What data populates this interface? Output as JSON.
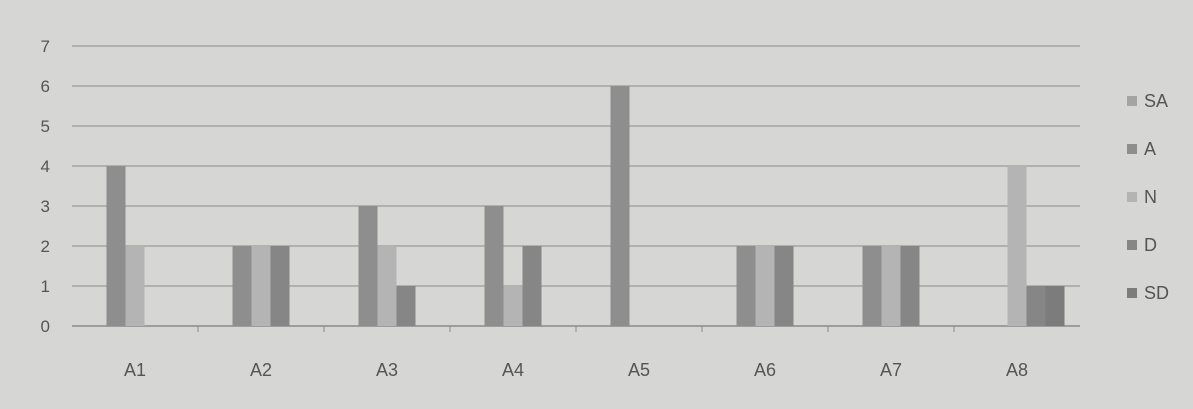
{
  "chart_data": {
    "type": "bar",
    "categories": [
      "A1",
      "A2",
      "A3",
      "A4",
      "A5",
      "A6",
      "A7",
      "A8"
    ],
    "series": [
      {
        "name": "SA",
        "values": [
          0,
          0,
          0,
          0,
          0,
          0,
          0,
          0
        ]
      },
      {
        "name": "A",
        "values": [
          4,
          2,
          3,
          3,
          6,
          2,
          2,
          0
        ]
      },
      {
        "name": "N",
        "values": [
          2,
          2,
          2,
          1,
          0,
          2,
          2,
          4
        ]
      },
      {
        "name": "D",
        "values": [
          0,
          2,
          1,
          2,
          0,
          2,
          2,
          1
        ]
      },
      {
        "name": "SD",
        "values": [
          0,
          0,
          0,
          0,
          0,
          0,
          0,
          1
        ]
      }
    ],
    "title": "",
    "xlabel": "",
    "ylabel": "",
    "ylim": [
      0,
      7
    ],
    "yticks": [
      0,
      1,
      2,
      3,
      4,
      5,
      6,
      7
    ],
    "grid": true,
    "legend": "right",
    "colors": {
      "background": "#d6d6d4",
      "SA": "#a4a4a4",
      "A": "#8e8e8e",
      "N": "#b4b4b4",
      "D": "#868686",
      "SD": "#7c7c7c",
      "grid": "#8a8a8a",
      "text": "#555555"
    }
  }
}
